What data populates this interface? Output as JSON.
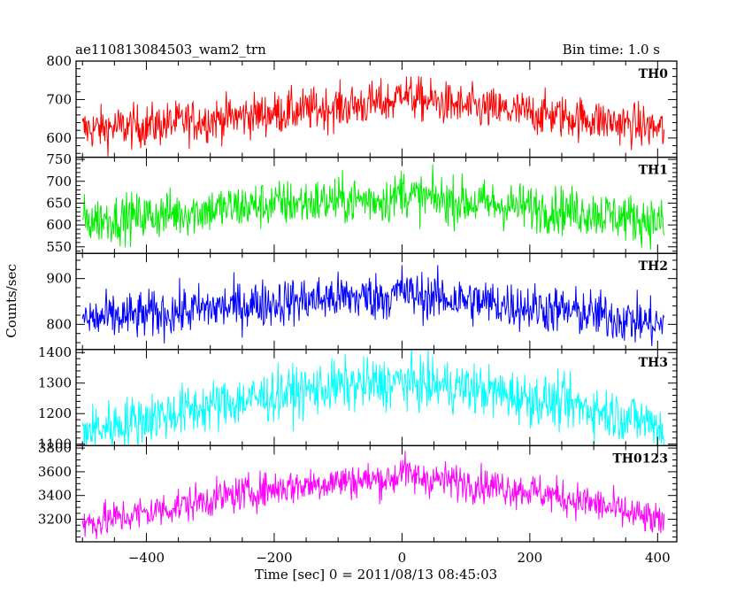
{
  "chart_data": {
    "type": "line",
    "title": "ae110813084503_wam2_trn",
    "subtitle": "Bin time: 1.0 s",
    "xlabel": "Time [sec] 0 = 2011/08/13 08:45:03",
    "ylabel": "Counts/sec",
    "xlim": [
      -510,
      430
    ],
    "x_ticks": [
      -400,
      -200,
      0,
      200,
      400
    ],
    "bin_time": 1.0,
    "panels": [
      {
        "name": "TH0",
        "color": "#ff0000",
        "ylim": [
          550,
          800
        ],
        "y_ticks": [
          600,
          700,
          800
        ],
        "profile": {
          "t": [
            -500,
            -400,
            -300,
            -200,
            -100,
            -10,
            0,
            10,
            100,
            200,
            300,
            400,
            410
          ],
          "mean": [
            622,
            632,
            648,
            665,
            680,
            695,
            735,
            705,
            680,
            665,
            648,
            625,
            620
          ]
        },
        "noise": 28
      },
      {
        "name": "TH1",
        "color": "#00ee00",
        "ylim": [
          535,
          755
        ],
        "y_ticks": [
          550,
          600,
          650,
          700,
          750
        ],
        "profile": {
          "t": [
            -500,
            -400,
            -300,
            -200,
            -100,
            -10,
            0,
            10,
            100,
            200,
            300,
            400,
            410
          ],
          "mean": [
            610,
            620,
            635,
            648,
            655,
            660,
            685,
            665,
            652,
            640,
            628,
            608,
            600
          ]
        },
        "noise": 27
      },
      {
        "name": "TH2",
        "color": "#0000ff",
        "ylim": [
          745,
          955
        ],
        "y_ticks": [
          800,
          900
        ],
        "profile": {
          "t": [
            -500,
            -400,
            -300,
            -200,
            -100,
            -10,
            0,
            10,
            100,
            200,
            300,
            400,
            410
          ],
          "mean": [
            810,
            820,
            835,
            848,
            858,
            862,
            880,
            865,
            852,
            838,
            822,
            800,
            795
          ]
        },
        "noise": 26
      },
      {
        "name": "TH3",
        "color": "#00ffff",
        "ylim": [
          1095,
          1410
        ],
        "y_ticks": [
          1100,
          1200,
          1300,
          1400
        ],
        "profile": {
          "t": [
            -500,
            -400,
            -300,
            -200,
            -100,
            -10,
            0,
            10,
            100,
            200,
            300,
            400,
            410
          ],
          "mean": [
            1140,
            1185,
            1225,
            1260,
            1290,
            1300,
            1310,
            1300,
            1285,
            1250,
            1215,
            1165,
            1140
          ]
        },
        "noise": 42
      },
      {
        "name": "TH0123",
        "color": "#ff00ff",
        "ylim": [
          3010,
          3820
        ],
        "y_ticks": [
          3200,
          3400,
          3600,
          3800
        ],
        "profile": {
          "t": [
            -500,
            -400,
            -300,
            -200,
            -100,
            -10,
            0,
            10,
            100,
            200,
            300,
            400,
            410
          ],
          "mean": [
            3160,
            3255,
            3370,
            3460,
            3520,
            3540,
            3650,
            3560,
            3510,
            3440,
            3330,
            3180,
            3130
          ]
        },
        "noise": 75
      }
    ]
  }
}
